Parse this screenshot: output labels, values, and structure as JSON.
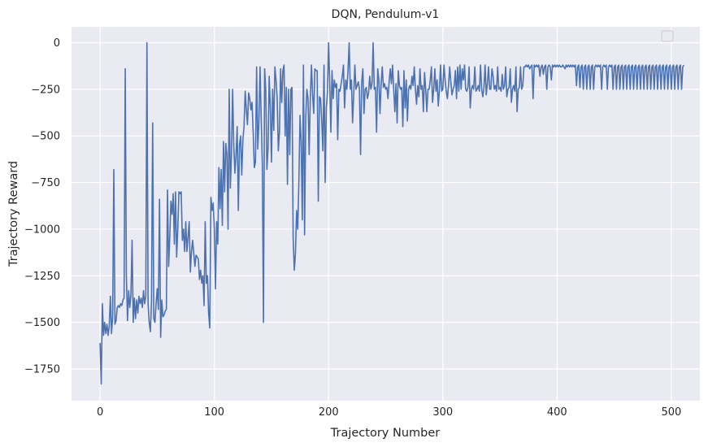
{
  "chart_data": {
    "type": "line",
    "title": "DQN, Pendulum-v1",
    "xlabel": "Trajectory Number",
    "ylabel": "Trajectory Reward",
    "xlim": [
      -25,
      525
    ],
    "ylim": [
      -1920,
      85
    ],
    "xticks": [
      0,
      100,
      200,
      300,
      400,
      500
    ],
    "yticks": [
      0,
      -250,
      -500,
      -750,
      -1000,
      -1250,
      -1500,
      -1750
    ],
    "grid": true,
    "legend": "top-right (empty)",
    "colors": {
      "background": "#eaeaf2",
      "line": "#4c72b0",
      "grid": "#ffffff"
    },
    "series": [
      {
        "values": [
          -1610,
          -1830,
          -1400,
          -1570,
          -1500,
          -1560,
          -1510,
          -1570,
          -1520,
          -1360,
          -1560,
          -1470,
          -680,
          -1510,
          -1490,
          -1420,
          -1410,
          -1420,
          -1400,
          -1410,
          -1380,
          -1370,
          -140,
          -1250,
          -1490,
          -1330,
          -1420,
          -1350,
          -1060,
          -1500,
          -1370,
          -1480,
          -1380,
          -1450,
          -1360,
          -1400,
          -1370,
          -1420,
          -1330,
          -1400,
          -1360,
          0,
          -1400,
          -1500,
          -1550,
          -1390,
          -430,
          -1480,
          -1500,
          -1400,
          -1320,
          -1430,
          -840,
          -1580,
          -1380,
          -1470,
          -1460,
          -1440,
          -1430,
          -790,
          -1200,
          -1040,
          -850,
          -920,
          -810,
          -1080,
          -800,
          -1150,
          -1000,
          -800,
          -810,
          -800,
          -1060,
          -1000,
          -1120,
          -960,
          -1120,
          -1040,
          -960,
          -1230,
          -1120,
          -1060,
          -1130,
          -1200,
          -1140,
          -1150,
          -1160,
          -1270,
          -1220,
          -1290,
          -1250,
          -1410,
          -960,
          -1290,
          -1250,
          -1450,
          -1530,
          -830,
          -900,
          -860,
          -1000,
          -1320,
          -960,
          -1080,
          -670,
          -890,
          -680,
          -980,
          -530,
          -800,
          -540,
          -600,
          -1000,
          -250,
          -780,
          -600,
          -250,
          -550,
          -700,
          -600,
          -450,
          -900,
          -550,
          -500,
          -710,
          -520,
          -450,
          -260,
          -360,
          -440,
          -270,
          -300,
          -360,
          -320,
          -480,
          -670,
          -640,
          -130,
          -570,
          -430,
          -130,
          -400,
          -650,
          -1500,
          -140,
          -250,
          -680,
          -570,
          -180,
          -350,
          -640,
          -250,
          -470,
          -130,
          -200,
          -300,
          -580,
          -480,
          -140,
          -320,
          -150,
          -120,
          -500,
          -240,
          -760,
          -250,
          -600,
          -250,
          -240,
          -1050,
          -1220,
          -1130,
          -900,
          -1000,
          -740,
          -390,
          -530,
          -950,
          -120,
          -1030,
          -400,
          -250,
          -300,
          -600,
          -300,
          -120,
          -280,
          -380,
          -140,
          -150,
          -150,
          -850,
          -290,
          -300,
          -420,
          -580,
          -120,
          -750,
          -350,
          -270,
          0,
          -220,
          -480,
          -150,
          -300,
          -200,
          -240,
          -220,
          -520,
          -250,
          -260,
          -220,
          -180,
          -120,
          -350,
          -200,
          -250,
          -150,
          0,
          -250,
          -200,
          -430,
          -280,
          -120,
          -250,
          -230,
          -210,
          -250,
          -600,
          -210,
          -140,
          -380,
          -250,
          -240,
          -300,
          -270,
          -180,
          -250,
          -220,
          0,
          -250,
          -240,
          -480,
          -140,
          -200,
          -380,
          -220,
          -130,
          -240,
          -220,
          -250,
          -240,
          -300,
          -210,
          -140,
          -220,
          -120,
          -250,
          -370,
          -220,
          -430,
          -150,
          -230,
          -250,
          -240,
          -450,
          -150,
          -350,
          -200,
          -420,
          -250,
          -230,
          -250,
          -180,
          -230,
          -130,
          -250,
          -330,
          -230,
          -290,
          -140,
          -250,
          -230,
          -370,
          -160,
          -250,
          -370,
          -250,
          -250,
          -200,
          -130,
          -320,
          -250,
          -140,
          -260,
          -200,
          -340,
          -250,
          -120,
          -260,
          -250,
          -120,
          -200,
          -260,
          -300,
          -230,
          -130,
          -210,
          -280,
          -250,
          -230,
          -150,
          -300,
          -130,
          -260,
          -120,
          -250,
          -140,
          -200,
          -120,
          -250,
          -260,
          -240,
          -130,
          -350,
          -250,
          -230,
          -250,
          -130,
          -260,
          -250,
          -230,
          -260,
          -120,
          -250,
          -290,
          -240,
          -120,
          -280,
          -220,
          -130,
          -250,
          -250,
          -140,
          -180,
          -250,
          -230,
          -260,
          -130,
          -250,
          -240,
          -260,
          -170,
          -250,
          -230,
          -130,
          -290,
          -250,
          -240,
          -140,
          -320,
          -250,
          -230,
          -260,
          -130,
          -370,
          -250,
          -240,
          -130,
          -250,
          -230,
          -130,
          -130,
          -120,
          -130,
          -120,
          -140,
          -130,
          -120,
          -300,
          -120,
          -130,
          -120,
          -130,
          -120,
          -180,
          -130,
          -120,
          -170,
          -130,
          -120,
          -250,
          -130,
          -120,
          -130,
          -200,
          -120,
          -130,
          -120,
          -130,
          -120,
          -130,
          -120,
          -130,
          -130,
          -120,
          -130,
          -140,
          -120,
          -130,
          -120,
          -130,
          -120,
          -130,
          -120,
          -130,
          -120,
          -230,
          -130,
          -120,
          -240,
          -130,
          -120,
          -250,
          -130,
          -120,
          -250,
          -130,
          -120,
          -250,
          -130,
          -120,
          -250,
          -130,
          -120,
          -130,
          -120,
          -130,
          -120,
          -250,
          -130,
          -120,
          -130,
          -120,
          -250,
          -130,
          -120,
          -130,
          -120,
          -250,
          -130,
          -120,
          -250,
          -130,
          -120,
          -250,
          -130,
          -120,
          -250,
          -130,
          -120,
          -250,
          -130,
          -120,
          -250,
          -130,
          -120,
          -250,
          -130,
          -120,
          -250,
          -130,
          -120,
          -250,
          -130,
          -120,
          -250,
          -130,
          -120,
          -250,
          -130,
          -120,
          -250,
          -130,
          -120,
          -250,
          -130,
          -120,
          -250,
          -130,
          -120,
          -250,
          -130,
          -120,
          -250,
          -130,
          -120,
          -250,
          -130,
          -120,
          -250,
          -130,
          -120,
          -250,
          -130,
          -120,
          -250,
          -130,
          -120,
          -250,
          -130,
          -120
        ]
      }
    ]
  }
}
